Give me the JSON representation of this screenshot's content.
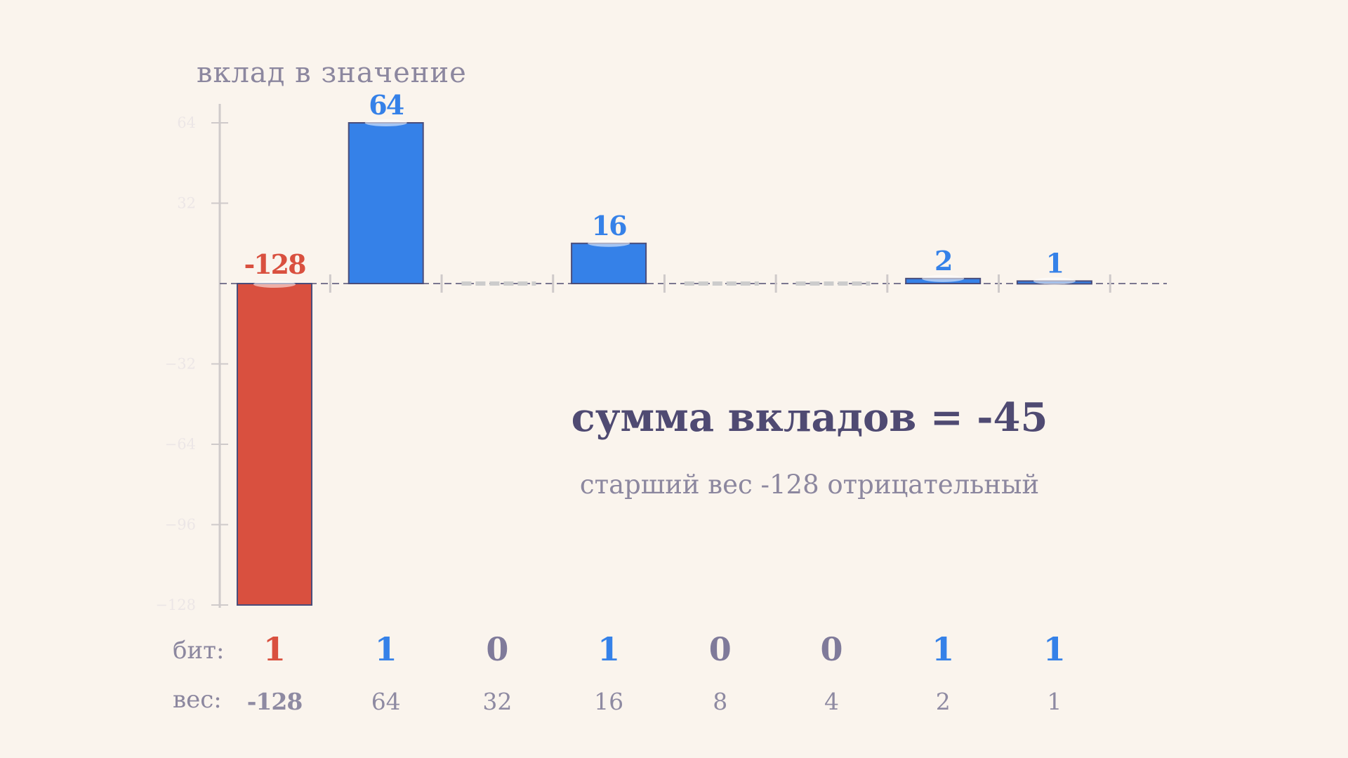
{
  "chart_data": {
    "type": "bar",
    "ylabel": "вклад в значение",
    "ylim": [
      -128,
      64
    ],
    "yticks": [
      64,
      32,
      -32,
      -64,
      -96,
      -128
    ],
    "ytick_labels": [
      "64",
      "32",
      "−32",
      "−64",
      "−96",
      "−128"
    ],
    "categories": [
      "-128",
      "64",
      "32",
      "16",
      "8",
      "4",
      "2",
      "1"
    ],
    "values": [
      -128,
      64,
      0,
      16,
      0,
      0,
      2,
      1
    ],
    "value_labels": [
      "-128",
      "64",
      "",
      "16",
      "",
      "",
      "2",
      "1"
    ],
    "bits": [
      1,
      1,
      0,
      1,
      0,
      0,
      1,
      1
    ],
    "weights": [
      "-128",
      "64",
      "32",
      "16",
      "8",
      "4",
      "2",
      "1"
    ],
    "bit_row_label": "бит:",
    "weight_row_label": "вес:",
    "sum_text": "сумма вкладов = -45",
    "note_text": "старший вес -128 отрицательный"
  },
  "colors": {
    "background": "#faf4ed",
    "negative": "#d9503f",
    "positive": "#3581e8",
    "zero_bit": "#7f7a9a",
    "bar_outline": "#4a4d7a",
    "axis": "#cfcaca",
    "baseline": "#7b7790",
    "zero_dash": "#cccccc",
    "heading": "#4f4a72"
  }
}
